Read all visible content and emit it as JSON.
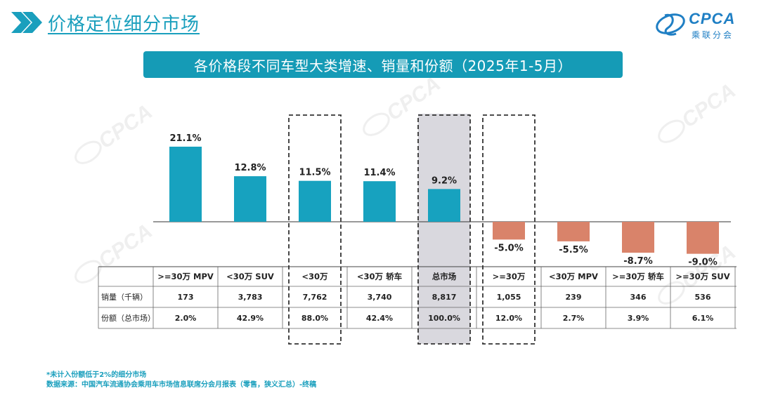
{
  "header": {
    "title": "价格定位细分市场",
    "logo_main": "CPCA",
    "logo_sub": "乘联分会",
    "logo_small": "CPCA"
  },
  "banner": "各价格段不同车型大类增速、销量和份额（2025年1-5月）",
  "watermark": "CPCA",
  "colors": {
    "positive": "#17a2bf",
    "negative": "#d9836a",
    "highlight_bg": "#d9d8de",
    "accent": "#1a9fbd"
  },
  "chart_data": {
    "type": "bar",
    "categories": [
      ">=30万 MPV",
      "<30万 SUV",
      "<30万",
      "<30万 轿车",
      "总市场",
      ">=30万",
      "<30万 MPV",
      ">=30万 轿车",
      ">=30万 SUV"
    ],
    "values": [
      21.1,
      12.8,
      11.5,
      11.4,
      9.2,
      -5.0,
      -5.5,
      -8.7,
      -9.0
    ],
    "value_labels": [
      "21.1%",
      "12.8%",
      "11.5%",
      "11.4%",
      "9.2%",
      "-5.0%",
      "-5.5%",
      "-8.7%",
      "-9.0%"
    ],
    "ylim": [
      -9.0,
      21.1
    ],
    "highlight_index": 4,
    "dashed_box_indices": [
      2,
      5
    ],
    "table": {
      "rows": [
        {
          "label": "销量（千辆）",
          "values": [
            "173",
            "3,783",
            "7,762",
            "3,740",
            "8,817",
            "1,055",
            "239",
            "346",
            "536"
          ]
        },
        {
          "label": "份额（总市场）",
          "values": [
            "2.0%",
            "42.9%",
            "88.0%",
            "42.4%",
            "100.0%",
            "12.0%",
            "2.7%",
            "3.9%",
            "6.1%"
          ]
        }
      ]
    }
  },
  "footnotes": [
    "*未计入份额低于2%的细分市场",
    "数据来源：中国汽车流通协会乘用车市场信息联席分会月报表（零售，狭义汇总）-终稿"
  ]
}
